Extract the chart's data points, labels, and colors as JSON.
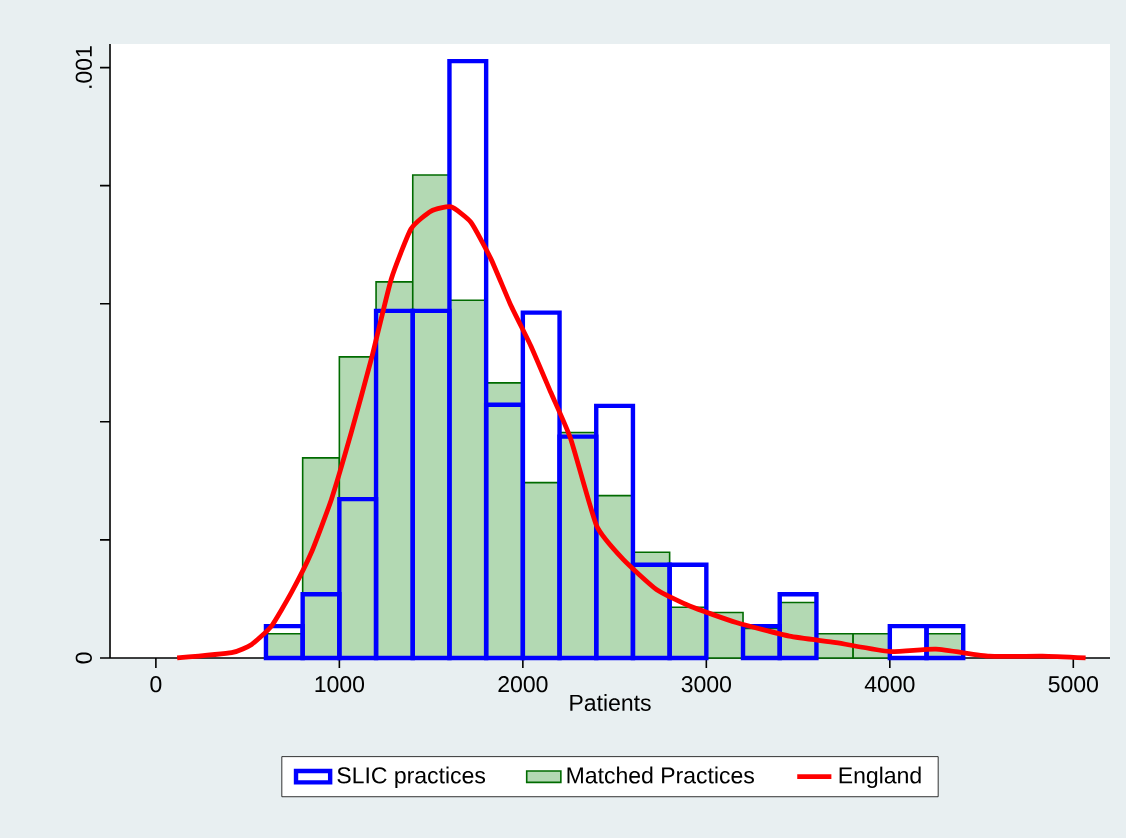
{
  "chart_data": {
    "type": "histogram",
    "xlabel": "Patients",
    "bins": [
      600,
      800,
      1000,
      1200,
      1400,
      1600,
      1800,
      2000,
      2200,
      2400,
      2600,
      2800,
      3000,
      3200,
      3400,
      3600,
      3800,
      4000,
      4200,
      4400
    ],
    "series": [
      {
        "name": "SLIC practices",
        "color": "#0000ff",
        "values": [
          5.4e-05,
          0.000108,
          0.000269,
          0.000588,
          0.000588,
          0.001011,
          0.000429,
          0.000585,
          0.000375,
          0.000427,
          0.000158,
          0.000158,
          null,
          5.4e-05,
          0.000108,
          null,
          null,
          5.4e-05,
          5.4e-05
        ]
      },
      {
        "name": "Matched Practices",
        "color": "#b3d9b3",
        "values": [
          4.1e-05,
          0.000339,
          0.00051,
          0.000637,
          0.000818,
          0.000606,
          0.000466,
          0.000297,
          0.000382,
          0.000275,
          0.000179,
          8.6e-05,
          7.7e-05,
          5e-05,
          9.4e-05,
          4.1e-05,
          4.1e-05,
          null,
          4.1e-05
        ]
      },
      {
        "name": "England",
        "type": "line",
        "color": "#ff0000",
        "x": [
          116,
          413,
          522,
          630,
          739,
          848,
          957,
          1065,
          1174,
          1283,
          1391,
          1500,
          1609,
          1717,
          1826,
          1935,
          2043,
          2152,
          2261,
          2402,
          2547,
          2728,
          2909,
          3163,
          3453,
          3707,
          3997,
          4251,
          4542,
          4832,
          5067
        ],
        "values": [
          0,
          9e-06,
          2.3e-05,
          5.4e-05,
          0.000111,
          0.000179,
          0.000269,
          0.000382,
          0.000506,
          0.000642,
          0.000727,
          0.000757,
          0.000764,
          0.000738,
          0.000676,
          0.000597,
          0.000529,
          0.00045,
          0.000371,
          0.000224,
          0.000167,
          0.000116,
          8.8e-05,
          6e-05,
          3.7e-05,
          2.6e-05,
          1.1e-05,
          1.5e-05,
          3e-06,
          3e-06,
          0
        ]
      }
    ],
    "xlim": [
      -250,
      5200
    ],
    "ylim": [
      0,
      0.00104
    ],
    "xticks": [
      0,
      1000,
      2000,
      3000,
      4000,
      5000
    ],
    "yticks": [
      {
        "value": 0,
        "label": "0"
      },
      {
        "value": 0.0002,
        "label": null
      },
      {
        "value": 0.0004,
        "label": null
      },
      {
        "value": 0.0006,
        "label": null
      },
      {
        "value": 0.0008,
        "label": null
      },
      {
        "value": 0.001,
        "label": ".001"
      }
    ],
    "legend": "bottom"
  }
}
